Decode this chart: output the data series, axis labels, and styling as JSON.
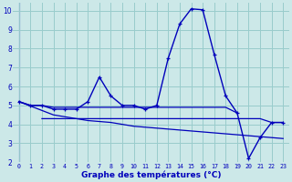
{
  "title": "Graphe des températures (°C)",
  "bg_color": "#cce8e8",
  "grid_color": "#99cccc",
  "line_color": "#0000bb",
  "xlim": [
    -0.5,
    23.5
  ],
  "ylim": [
    2,
    10.4
  ],
  "xticks": [
    0,
    1,
    2,
    3,
    4,
    5,
    6,
    7,
    8,
    9,
    10,
    11,
    12,
    13,
    14,
    15,
    16,
    17,
    18,
    19,
    20,
    21,
    22,
    23
  ],
  "yticks": [
    2,
    3,
    4,
    5,
    6,
    7,
    8,
    9,
    10
  ],
  "line_main": {
    "x": [
      0,
      1,
      2,
      3,
      4,
      5,
      6,
      7,
      8,
      9,
      10,
      11,
      12,
      13,
      14,
      15,
      16,
      17,
      18,
      19,
      20,
      21,
      22,
      23
    ],
    "y": [
      5.2,
      5.0,
      5.0,
      4.8,
      4.8,
      4.8,
      5.2,
      6.5,
      5.5,
      5.0,
      5.0,
      4.8,
      5.0,
      7.5,
      9.3,
      10.1,
      10.05,
      7.7,
      5.5,
      4.6,
      2.2,
      3.3,
      4.1,
      4.1
    ]
  },
  "line_upper_flat": {
    "x": [
      0,
      1,
      2,
      3,
      4,
      5,
      6,
      7,
      8,
      9,
      10,
      11,
      12,
      13,
      14,
      15,
      16,
      17,
      18,
      19
    ],
    "y": [
      5.2,
      5.0,
      5.0,
      4.9,
      4.9,
      4.9,
      4.9,
      4.9,
      4.9,
      4.9,
      4.9,
      4.9,
      4.9,
      4.9,
      4.9,
      4.9,
      4.9,
      4.9,
      4.9,
      4.6
    ]
  },
  "line_lower_flat": {
    "x": [
      2,
      3,
      4,
      5,
      6,
      7,
      8,
      9,
      10,
      11,
      12,
      13,
      14,
      15,
      16,
      17,
      18,
      19,
      20,
      21,
      22,
      23
    ],
    "y": [
      4.3,
      4.3,
      4.3,
      4.3,
      4.3,
      4.3,
      4.3,
      4.3,
      4.3,
      4.3,
      4.3,
      4.3,
      4.3,
      4.3,
      4.3,
      4.3,
      4.3,
      4.3,
      4.3,
      4.3,
      4.1,
      4.1
    ]
  },
  "line_declining": {
    "x": [
      0,
      3,
      4,
      5,
      6,
      7,
      8,
      9,
      10,
      11,
      12,
      13,
      14,
      15,
      16,
      17,
      18,
      19,
      20,
      21,
      22,
      23
    ],
    "y": [
      5.2,
      4.5,
      4.4,
      4.3,
      4.2,
      4.15,
      4.1,
      4.0,
      3.9,
      3.85,
      3.8,
      3.75,
      3.7,
      3.65,
      3.6,
      3.55,
      3.5,
      3.45,
      3.4,
      3.35,
      3.3,
      3.25
    ]
  }
}
